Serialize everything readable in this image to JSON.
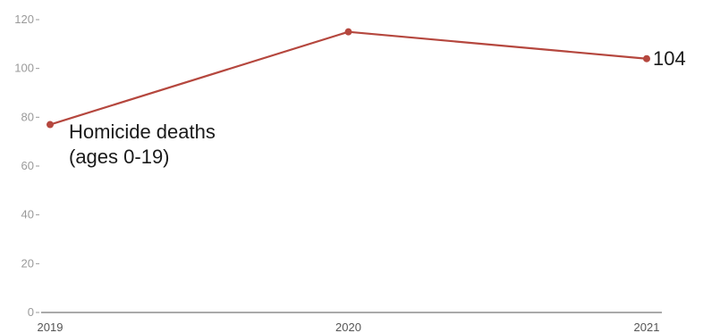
{
  "chart_data": {
    "type": "line",
    "x": [
      "2019",
      "2020",
      "2021"
    ],
    "series": [
      {
        "name": "Homicide deaths (ages 0-19)",
        "values": [
          77,
          115,
          104
        ],
        "color": "#b5473e"
      }
    ],
    "series_label_lines": [
      "Homicide deaths",
      "(ages 0-19)"
    ],
    "end_value_label": "104",
    "yticks": [
      "0",
      "20",
      "40",
      "60",
      "80",
      "100",
      "120"
    ],
    "ylim": [
      0,
      120
    ],
    "grid": false,
    "xlabel": "",
    "ylabel": ""
  }
}
